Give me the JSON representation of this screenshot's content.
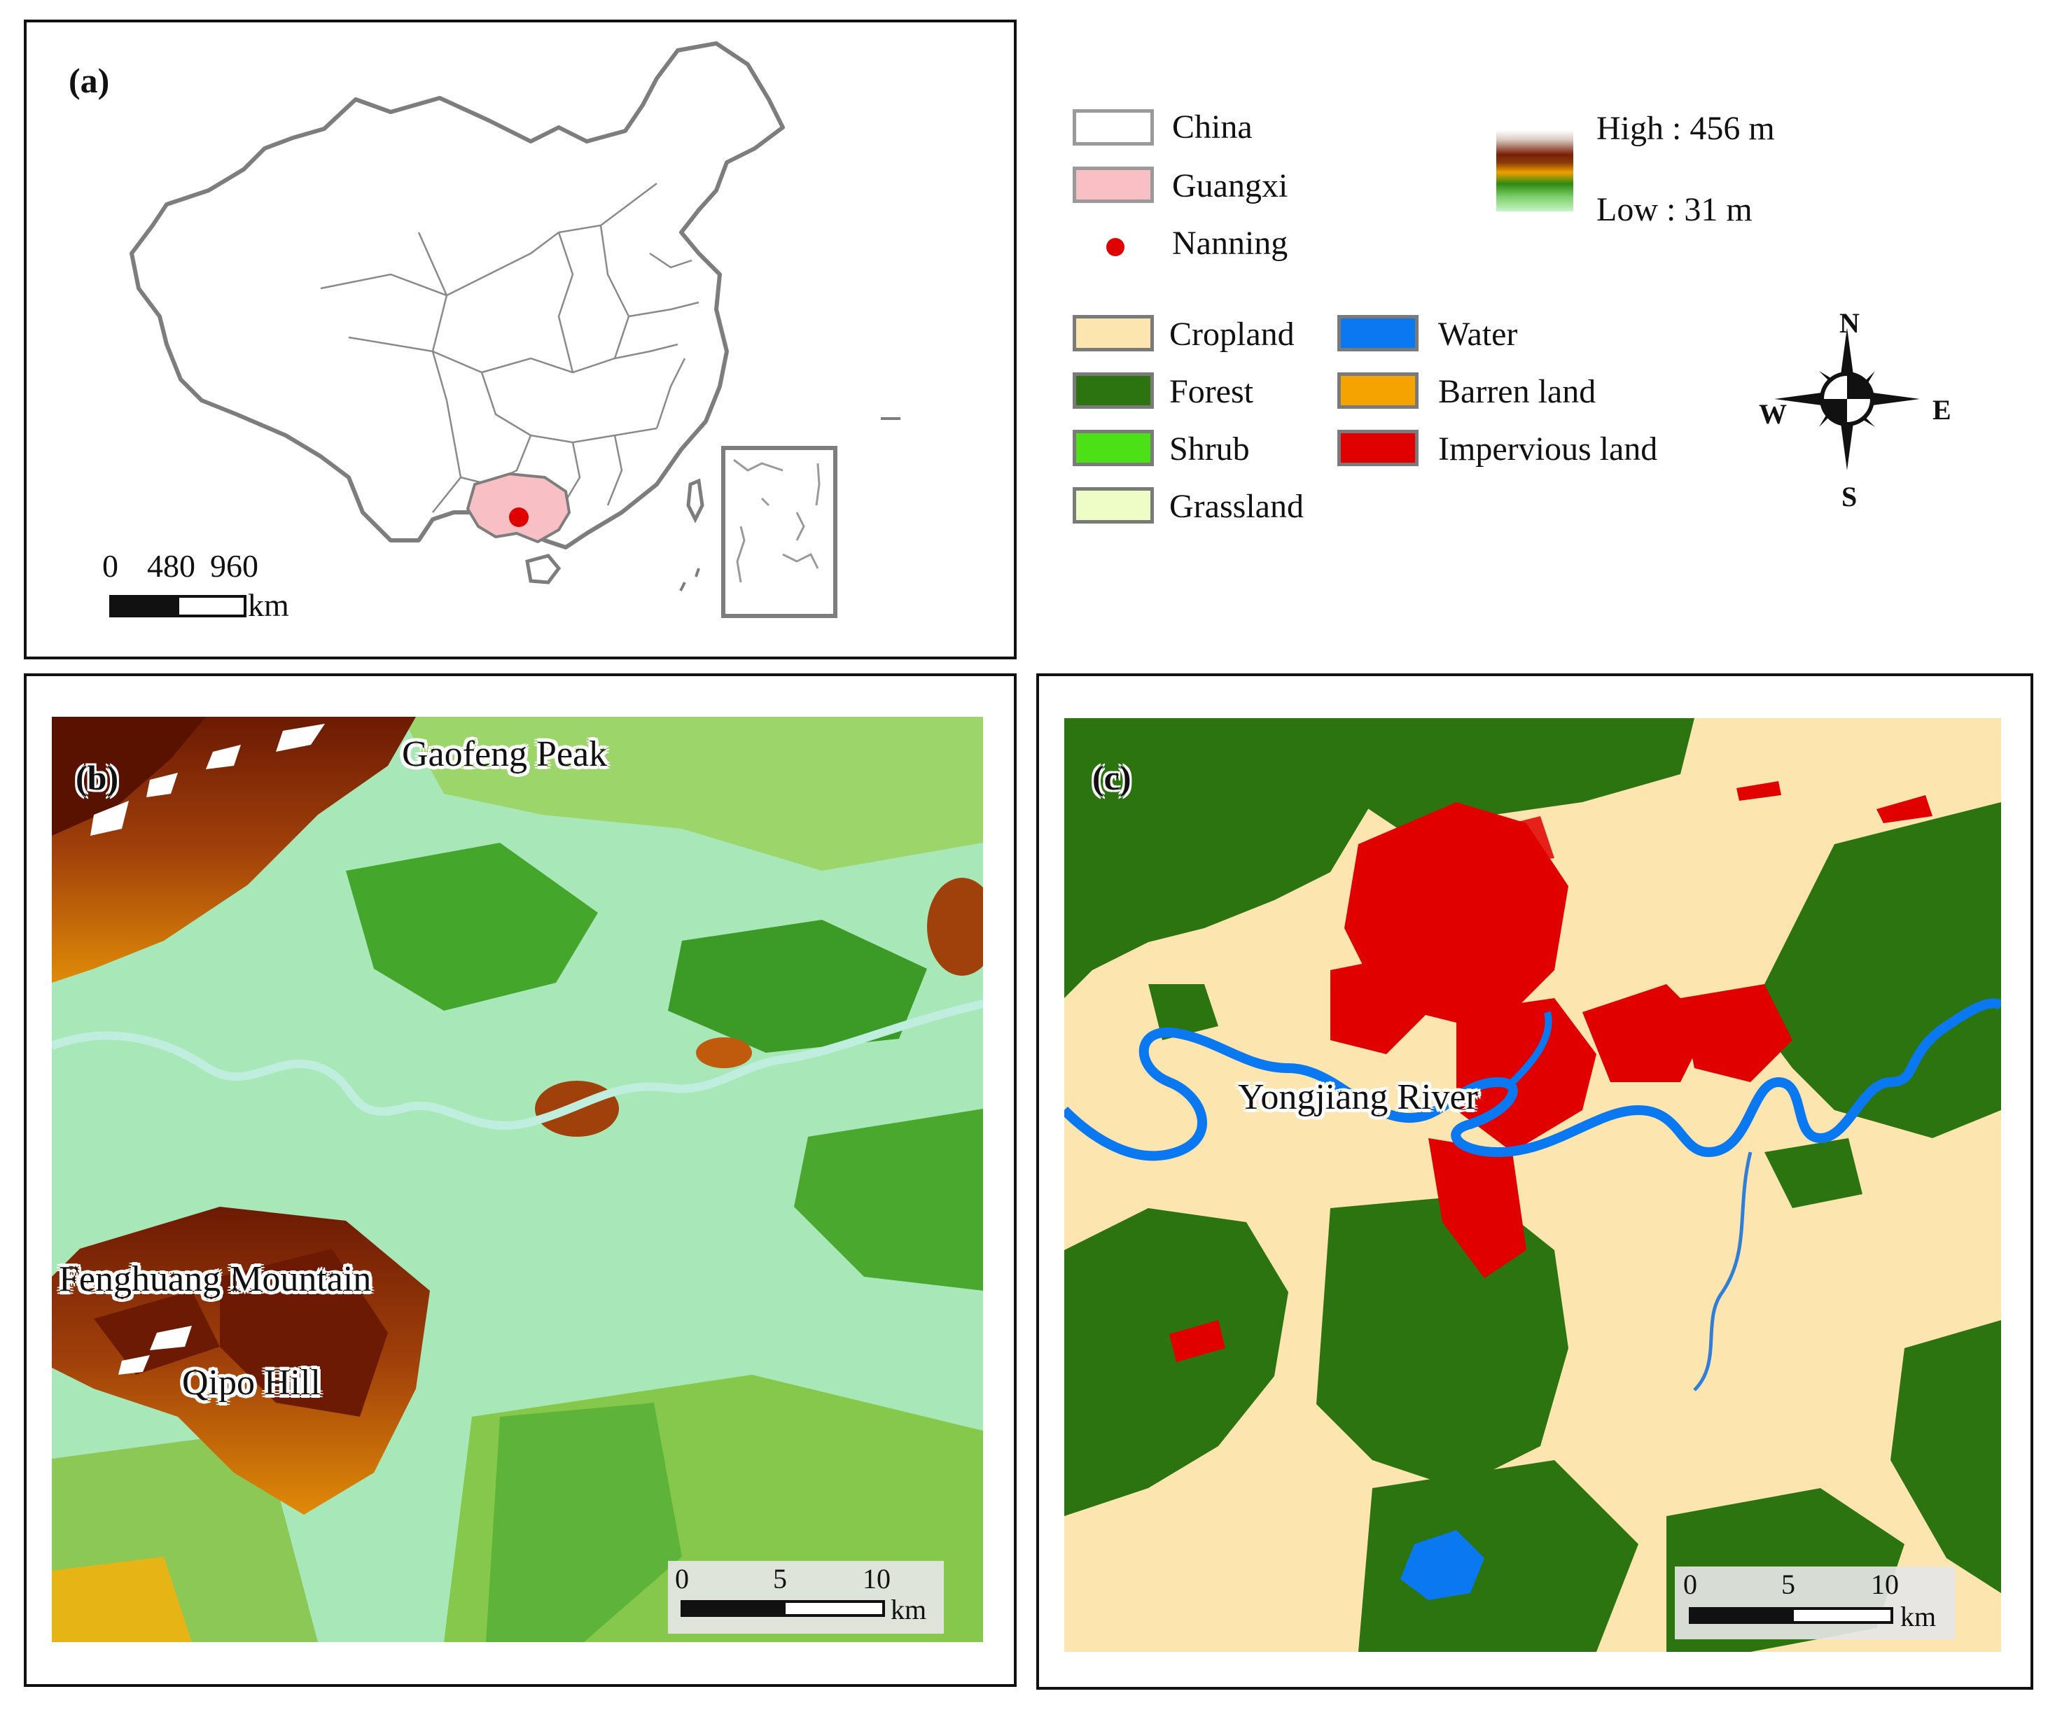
{
  "panel_a": {
    "label": "(a)",
    "scale": {
      "ticks": [
        "0",
        "480",
        "960"
      ],
      "unit": "km"
    }
  },
  "legend": {
    "context": [
      {
        "label": "China",
        "color": "#ffffff"
      },
      {
        "label": "Guangxi",
        "color": "#f8c0c4"
      },
      {
        "label": "Nanning",
        "color": "#e00000"
      }
    ],
    "elevation": {
      "high": "High : 456 m",
      "low": "Low : 31 m"
    },
    "landcover": [
      {
        "label": "Cropland",
        "color": "#fde5b0"
      },
      {
        "label": "Forest",
        "color": "#2b7410"
      },
      {
        "label": "Shrub",
        "color": "#4ce016"
      },
      {
        "label": "Grassland",
        "color": "#eefcc6"
      },
      {
        "label": "Water",
        "color": "#0a78f0"
      },
      {
        "label": "Barren land",
        "color": "#f5a300"
      },
      {
        "label": "Impervious land",
        "color": "#e00000"
      }
    ],
    "compass": {
      "n": "N",
      "s": "S",
      "e": "E",
      "w": "W"
    }
  },
  "panel_b": {
    "label": "(b)",
    "places": {
      "gaofeng": "Gaofeng Peak",
      "fenghuang": "Fenghuang Mountain",
      "qipo": "Qipo Hill"
    },
    "scale": {
      "ticks": [
        "0",
        "5",
        "10"
      ],
      "unit": "km"
    }
  },
  "panel_c": {
    "label": "(c)",
    "river": "Yongjiang River",
    "scale": {
      "ticks": [
        "0",
        "5",
        "10"
      ],
      "unit": "km"
    }
  }
}
